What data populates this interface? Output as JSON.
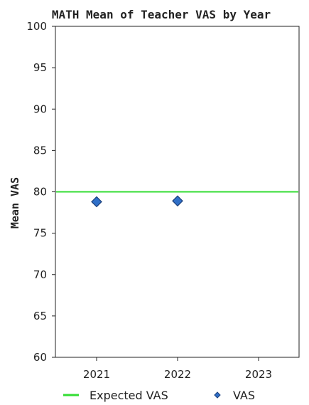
{
  "chart_data": {
    "type": "scatter",
    "title": "MATH Mean of Teacher VAS by Year",
    "ylabel": "Mean VAS",
    "xlabel": "",
    "categories": [
      "2021",
      "2022",
      "2023"
    ],
    "ylim": [
      60,
      100
    ],
    "yticks": [
      100,
      95,
      90,
      85,
      80,
      75,
      70,
      65,
      60
    ],
    "grid": false,
    "legend_position": "bottom",
    "reference_line": {
      "name": "Expected VAS",
      "value": 80,
      "color": "#33dd33"
    },
    "series": [
      {
        "name": "VAS",
        "color": "#2f6fc8",
        "values": [
          78.8,
          78.9,
          null
        ]
      }
    ]
  }
}
